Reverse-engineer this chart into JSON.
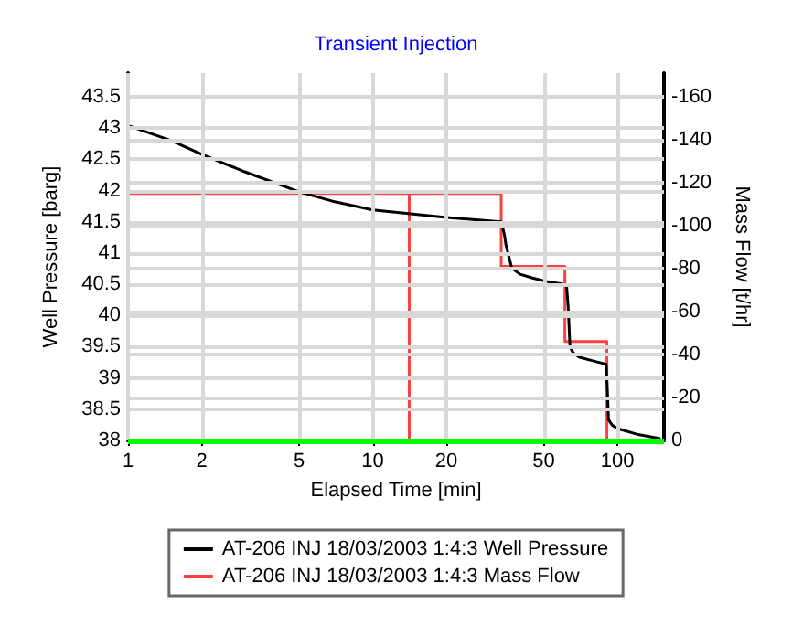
{
  "chart_data": {
    "type": "line",
    "title": "Transient Injection",
    "xlabel": "Elapsed Time [min]",
    "ylabel": "Well Pressure [barg]",
    "y2label": "Mass Flow [t/hr]",
    "log": "x",
    "grid": true,
    "legend": "bottom",
    "marker": "none",
    "line_style": "solid",
    "xlim": [
      1,
      155
    ],
    "xticks": [
      1,
      2,
      5,
      10,
      20,
      50,
      100
    ],
    "ylim": [
      38,
      43.88
    ],
    "yticks": [
      38,
      38.5,
      39,
      39.5,
      40,
      40.5,
      41,
      41.5,
      42,
      42.5,
      43,
      43.5
    ],
    "y2lim": [
      0,
      -171
    ],
    "y2ticks": [
      0,
      -20,
      -40,
      -60,
      -80,
      -100,
      -120,
      -140,
      -160
    ],
    "series": [
      {
        "name": "AT-206 INJ 18/03/2003 1:4:3 Well Pressure",
        "color": "#000000",
        "x": [
          1,
          1.5,
          2,
          3,
          5,
          7,
          10,
          14,
          20,
          27,
          33.5,
          34.5,
          35,
          37,
          40,
          45,
          52,
          60,
          62,
          63,
          64,
          66,
          70,
          80,
          90,
          91,
          92,
          95,
          100,
          120,
          150
        ],
        "values": [
          43.04,
          42.8,
          42.58,
          42.3,
          41.98,
          41.82,
          41.69,
          41.63,
          41.57,
          41.53,
          41.5,
          41.3,
          41.14,
          40.76,
          40.66,
          40.6,
          40.54,
          40.5,
          40.47,
          40.1,
          39.5,
          39.4,
          39.33,
          39.27,
          39.22,
          38.8,
          38.33,
          38.25,
          38.19,
          38.1,
          38.03
        ]
      },
      {
        "name": "AT-206 INJ 18/03/2003 1:4:3 Mass Flow",
        "color": "#ff4040",
        "axis": "y2",
        "x": [
          1,
          14.1,
          14.1,
          14.1,
          33.5,
          33.5,
          61,
          61,
          90.6,
          90.6,
          150
        ],
        "values": [
          -115,
          -115,
          0,
          -115,
          -115,
          -81,
          -81,
          -46,
          -46,
          0,
          0
        ]
      }
    ],
    "ref_lines": [
      {
        "axis": "y2",
        "value": 0,
        "color": "#00ff00"
      }
    ]
  }
}
